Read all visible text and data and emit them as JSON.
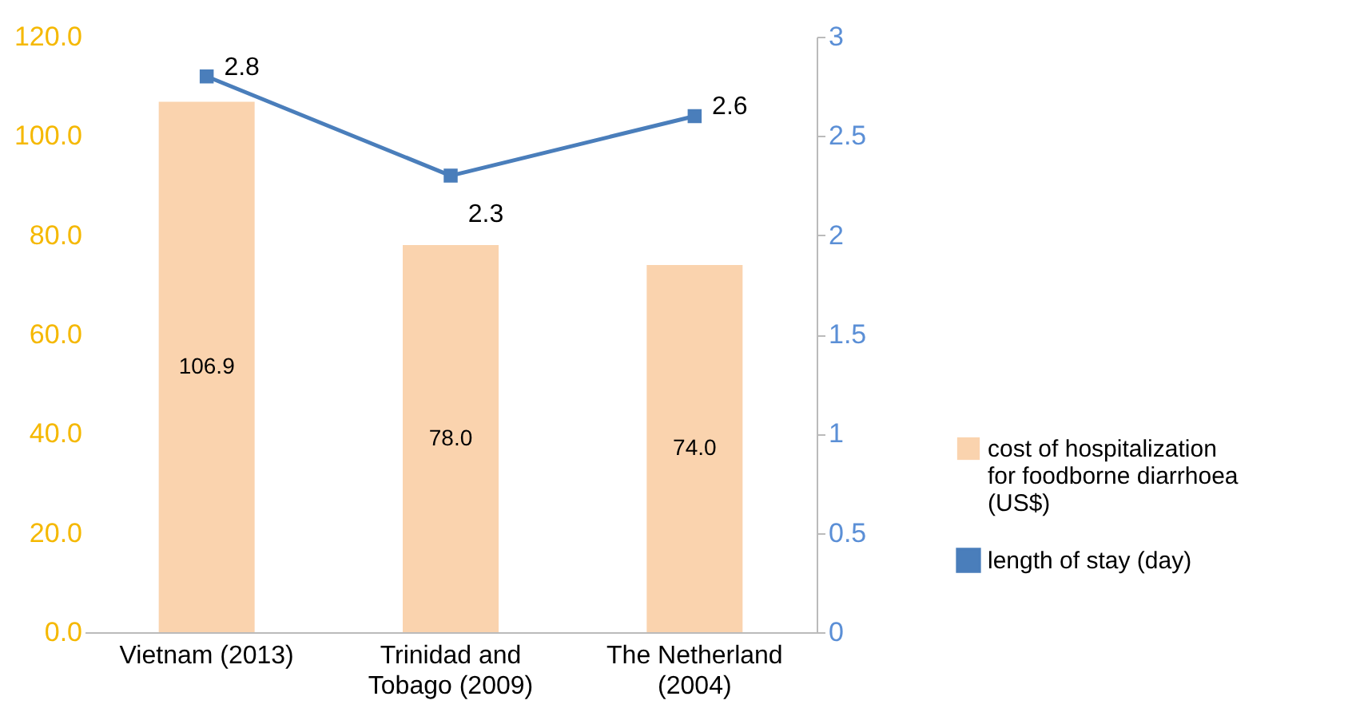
{
  "chart_data": {
    "type": "bar",
    "categories": [
      "Vietnam (2013)",
      "Trinidad and Tobago (2009)",
      "The Netherland (2004)"
    ],
    "series": [
      {
        "name": "cost of hospitalization for foodborne diarrhoea (US$)",
        "color": "#fad3ae",
        "values": [
          106.9,
          78.0,
          74.0
        ],
        "value_labels": [
          "106.9",
          "78.0",
          "74.0"
        ]
      },
      {
        "type": "line",
        "name": "length of stay (day)",
        "color": "#4a7ebb",
        "axis": "y2",
        "marker": "square",
        "values": [
          2.8,
          2.3,
          2.6
        ],
        "data_labels": true
      }
    ],
    "ylim": [
      0,
      120
    ],
    "yticks": [
      {
        "value": 0,
        "label": "0.0"
      },
      {
        "value": 20,
        "label": "20.0"
      },
      {
        "value": 40,
        "label": "40.0"
      },
      {
        "value": 60,
        "label": "60.0"
      },
      {
        "value": 80,
        "label": "80.0"
      },
      {
        "value": 100,
        "label": "100.0"
      },
      {
        "value": 120,
        "label": "120.0"
      }
    ],
    "y2lim": [
      0,
      3
    ],
    "y2ticks": [
      0,
      0.5,
      1,
      1.5,
      2,
      2.5,
      3
    ],
    "grid": false,
    "legend": "right"
  }
}
